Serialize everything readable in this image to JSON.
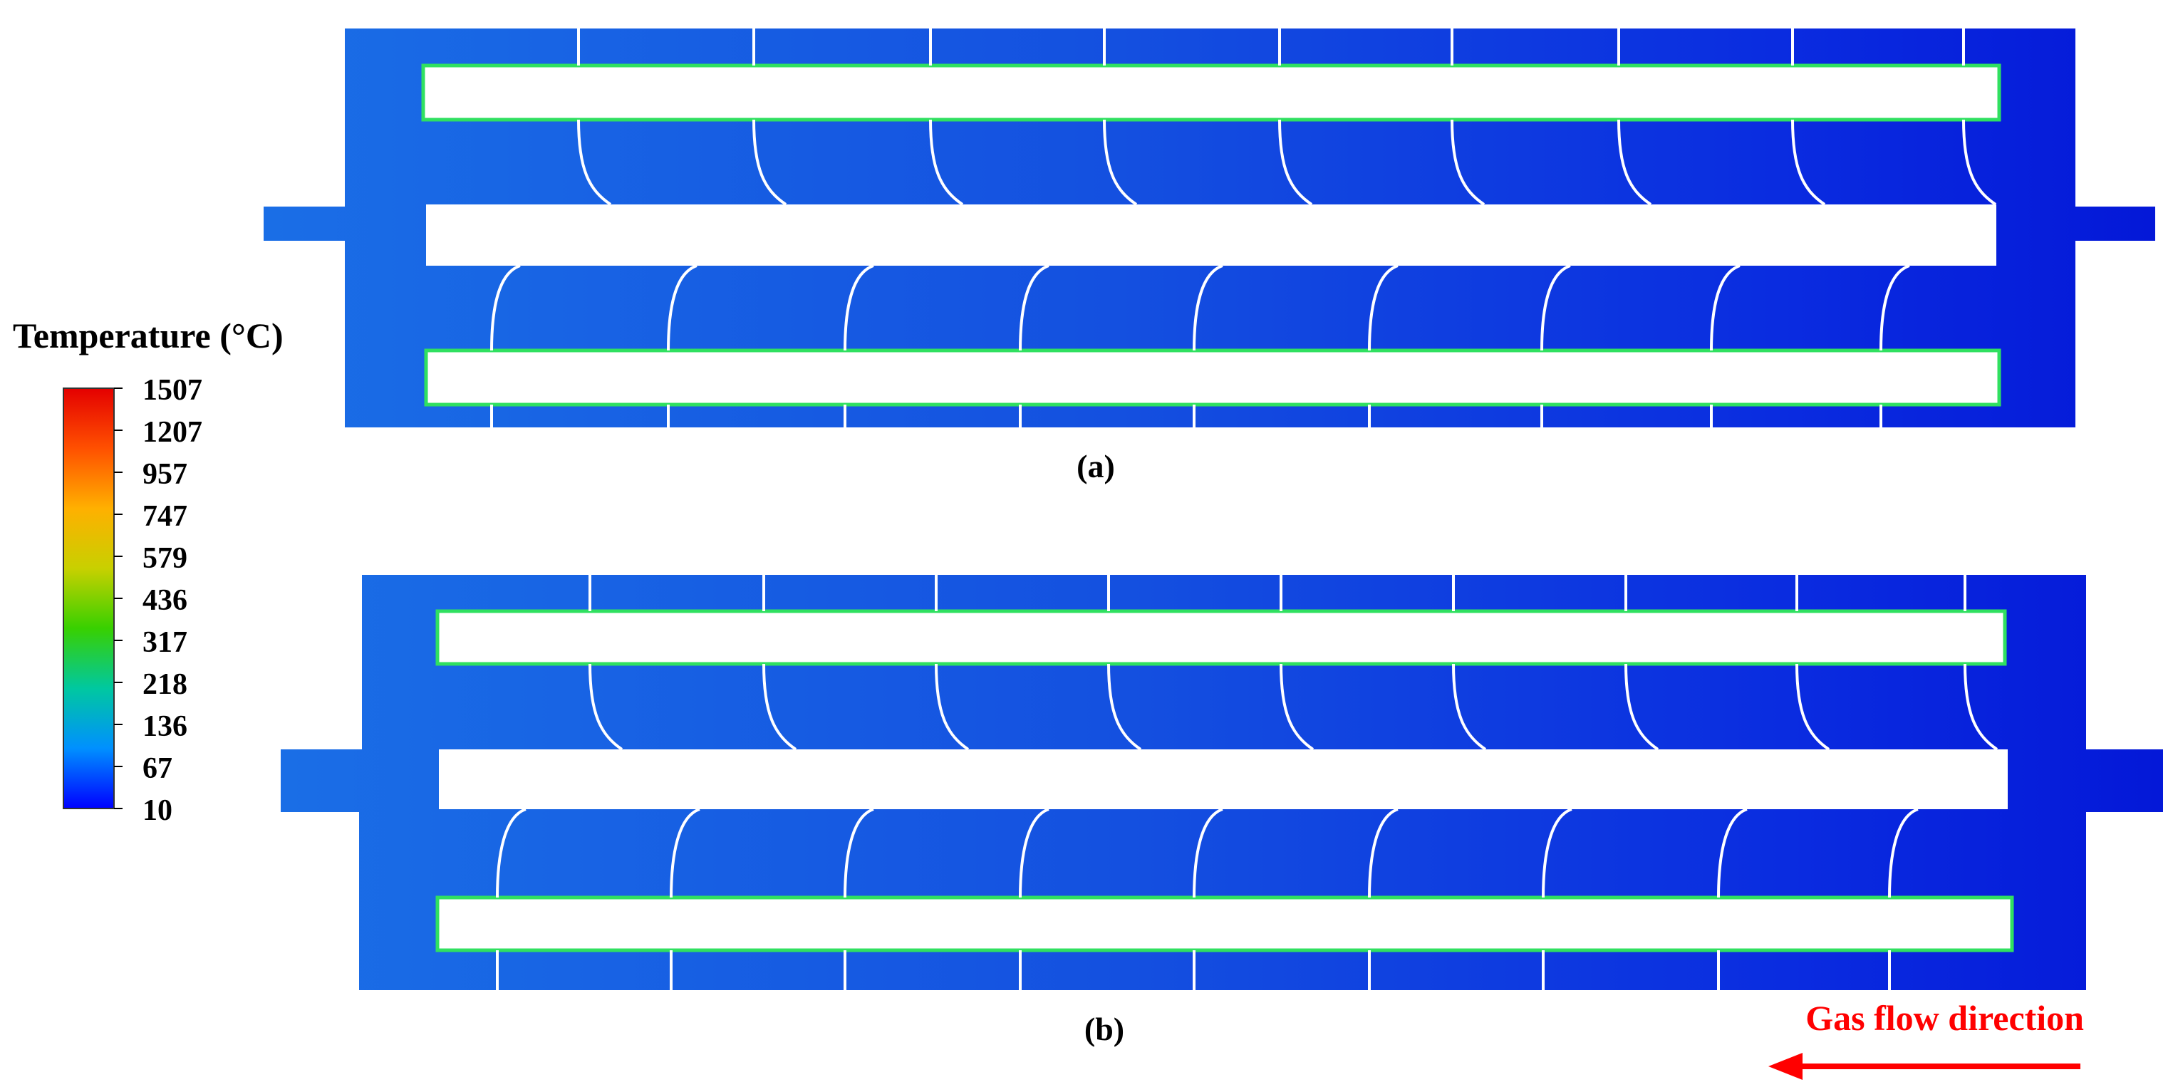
{
  "colorbar": {
    "title": "Temperature  (°C)",
    "ticks": [
      "1507",
      "1207",
      "957",
      "747",
      "579",
      "436",
      "317",
      "218",
      "136",
      "67",
      "10"
    ],
    "colors": [
      "#0000ff",
      "#0090ff",
      "#00c8a0",
      "#38d000",
      "#c8d000",
      "#ffb000",
      "#ff5000",
      "#e40000"
    ]
  },
  "panels": [
    {
      "label": "(a)"
    },
    {
      "label": "(b)"
    }
  ],
  "flow": {
    "label": "Gas flow direction",
    "direction": "right-to-left",
    "color": "#ff0000"
  }
}
